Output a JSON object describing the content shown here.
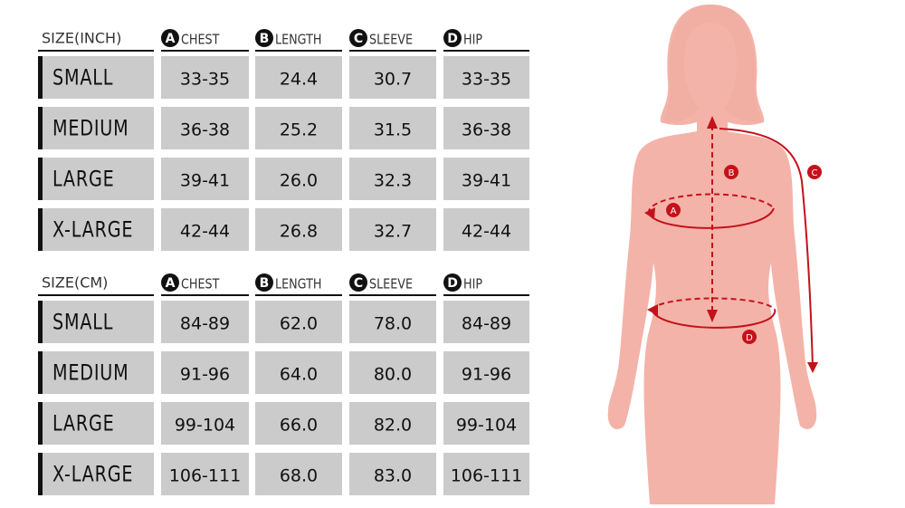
{
  "tables": [
    {
      "header": {
        "size": "SIZE(INCH)",
        "columns": [
          {
            "letter": "A",
            "name": "CHEST"
          },
          {
            "letter": "B",
            "name": "LENGTH"
          },
          {
            "letter": "C",
            "name": "SLEEVE"
          },
          {
            "letter": "D",
            "name": "HIP"
          }
        ]
      },
      "rows": [
        [
          "SMALL",
          "33-35",
          "24.4",
          "30.7",
          "33-35"
        ],
        [
          "MEDIUM",
          "36-38",
          "25.2",
          "31.5",
          "36-38"
        ],
        [
          "LARGE",
          "39-41",
          "26.0",
          "32.3",
          "39-41"
        ],
        [
          "X-LARGE",
          "42-44",
          "26.8",
          "32.7",
          "42-44"
        ]
      ]
    },
    {
      "header": {
        "size": "SIZE(CM)",
        "columns": [
          {
            "letter": "A",
            "name": "CHEST"
          },
          {
            "letter": "B",
            "name": "LENGTH"
          },
          {
            "letter": "C",
            "name": "SLEEVE"
          },
          {
            "letter": "D",
            "name": "HIP"
          }
        ]
      },
      "rows": [
        [
          "SMALL",
          "84-89",
          "62.0",
          "78.0",
          "84-89"
        ],
        [
          "MEDIUM",
          "91-96",
          "64.0",
          "80.0",
          "91-96"
        ],
        [
          "LARGE",
          "99-104",
          "66.0",
          "82.0",
          "99-104"
        ],
        [
          "X-LARGE",
          "106-111",
          "68.0",
          "83.0",
          "106-111"
        ]
      ]
    }
  ],
  "diagram": {
    "labels": [
      "A",
      "B",
      "C",
      "D"
    ]
  }
}
